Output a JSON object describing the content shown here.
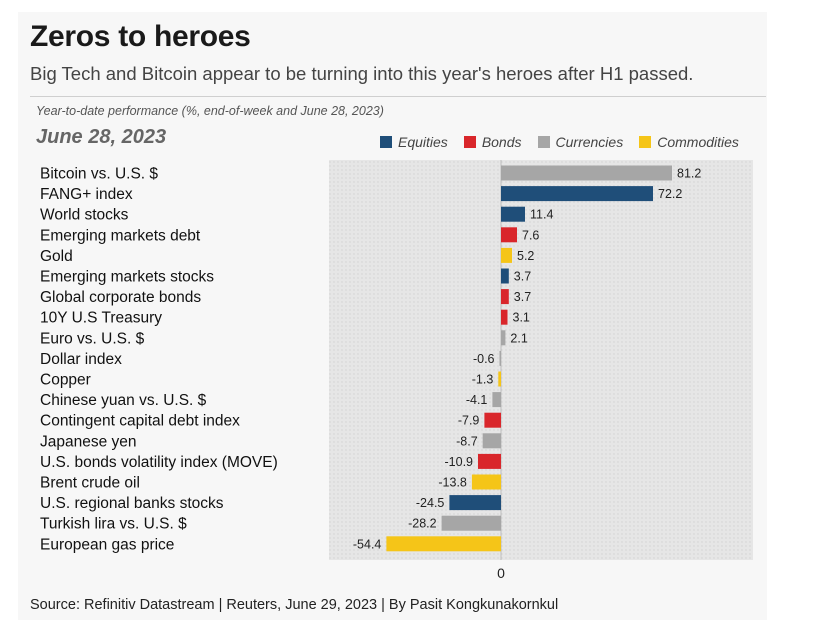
{
  "header": {
    "title": "Zeros to heroes",
    "subtitle": "Big Tech and Bitcoin appear to be turning into this year's heroes after H1 passed.",
    "caption": "Year-to-date performance (%, end-of-week and June 28, 2023)",
    "date": "June 28, 2023"
  },
  "legend": [
    {
      "label": "Equities",
      "color": "#1f4e79"
    },
    {
      "label": "Bonds",
      "color": "#d9262b"
    },
    {
      "label": "Currencies",
      "color": "#a6a6a6"
    },
    {
      "label": "Commodities",
      "color": "#f5c518"
    }
  ],
  "footer": {
    "source": "Source: Refinitiv Datastream | Reuters, June 29, 2023 | By Pasit Kongkunakornkul"
  },
  "chart_data": {
    "type": "bar",
    "orientation": "horizontal",
    "zero_label": "0",
    "xlim": [
      -60,
      90
    ],
    "grid": "dotted background",
    "categories": [
      "Bitcoin vs. U.S. $",
      "FANG+ index",
      "World stocks",
      "Emerging markets debt",
      "Gold",
      "Emerging markets stocks",
      "Global corporate bonds",
      "10Y U.S Treasury",
      "Euro vs. U.S. $",
      "Dollar index",
      "Copper",
      "Chinese yuan vs. U.S. $",
      "Contingent capital debt index",
      "Japanese yen",
      "U.S. bonds volatility index (MOVE)",
      "Brent crude oil",
      "U.S. regional banks stocks",
      "Turkish lira vs. U.S. $",
      "European gas price"
    ],
    "values": [
      81.2,
      72.2,
      11.4,
      7.6,
      5.2,
      3.7,
      3.7,
      3.1,
      2.1,
      -0.6,
      -1.3,
      -4.1,
      -7.9,
      -8.7,
      -10.9,
      -13.8,
      -24.5,
      -28.2,
      -54.4
    ],
    "value_labels": [
      "81.2",
      "72.2",
      "11.4",
      "7.6",
      "5.2",
      "3.7",
      "3.7",
      "3.1",
      "2.1",
      "-0.6",
      "-1.3",
      "-4.1",
      "-7.9",
      "-8.7",
      "-10.9",
      "-13.8",
      "-24.5",
      "-28.2",
      "-54.4"
    ],
    "asset_class": [
      "Currencies",
      "Equities",
      "Equities",
      "Bonds",
      "Commodities",
      "Equities",
      "Bonds",
      "Bonds",
      "Currencies",
      "Currencies",
      "Commodities",
      "Currencies",
      "Bonds",
      "Currencies",
      "Bonds",
      "Commodities",
      "Equities",
      "Currencies",
      "Commodities"
    ]
  }
}
